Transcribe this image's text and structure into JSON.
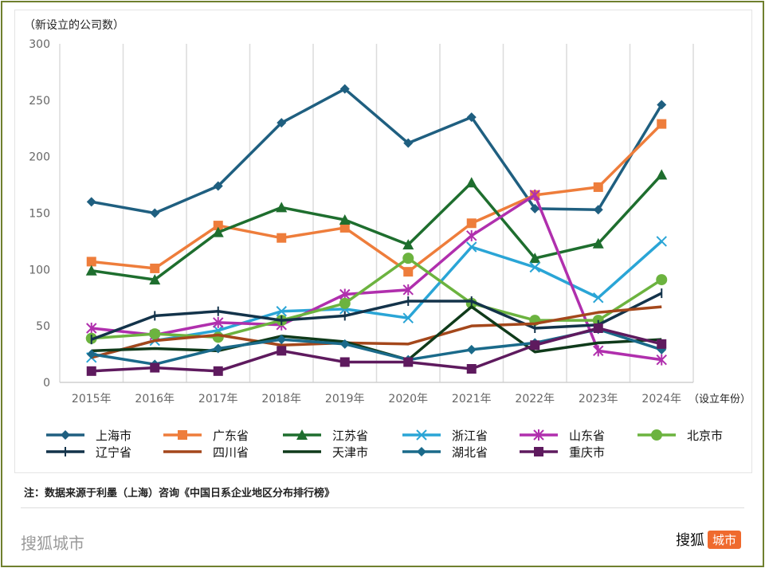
{
  "chart_data": {
    "type": "line",
    "ylabel": "（新设立的公司数）",
    "xlabel": "（设立年份）",
    "ylim": [
      0,
      300
    ],
    "yticks": [
      0,
      50,
      100,
      150,
      200,
      250,
      300
    ],
    "grid": "vertical",
    "legend": "bottom",
    "categories": [
      "2015年",
      "2016年",
      "2017年",
      "2018年",
      "2019年",
      "2020年",
      "2021年",
      "2022年",
      "2023年",
      "2024年"
    ],
    "series": [
      {
        "name": "上海市",
        "color": "#1f5f80",
        "marker": "diamond",
        "values": [
          160,
          150,
          174,
          230,
          260,
          212,
          235,
          154,
          153,
          246
        ]
      },
      {
        "name": "广东省",
        "color": "#ee7d3b",
        "marker": "square",
        "values": [
          107,
          101,
          139,
          128,
          137,
          98,
          141,
          166,
          173,
          229
        ]
      },
      {
        "name": "江苏省",
        "color": "#1e6e2e",
        "marker": "triangle",
        "values": [
          99,
          91,
          133,
          155,
          144,
          122,
          177,
          110,
          123,
          184
        ]
      },
      {
        "name": "浙江省",
        "color": "#2aa5d6",
        "marker": "x",
        "values": [
          22,
          37,
          46,
          63,
          65,
          57,
          120,
          102,
          75,
          125
        ]
      },
      {
        "name": "山东省",
        "color": "#b02fad",
        "marker": "star",
        "values": [
          48,
          42,
          53,
          51,
          78,
          82,
          130,
          166,
          28,
          20
        ]
      },
      {
        "name": "北京市",
        "color": "#6cb33f",
        "marker": "circle",
        "values": [
          39,
          43,
          40,
          55,
          70,
          110,
          70,
          55,
          55,
          91
        ]
      },
      {
        "name": "辽宁省",
        "color": "#13334a",
        "marker": "plus",
        "values": [
          38,
          59,
          63,
          55,
          59,
          72,
          72,
          48,
          51,
          79
        ]
      },
      {
        "name": "四川省",
        "color": "#a4471b",
        "marker": "none",
        "values": [
          22,
          37,
          42,
          33,
          35,
          34,
          50,
          52,
          62,
          67
        ]
      },
      {
        "name": "天津市",
        "color": "#0f3a1a",
        "marker": "none",
        "values": [
          28,
          30,
          28,
          41,
          36,
          20,
          67,
          27,
          35,
          38
        ]
      },
      {
        "name": "湖北省",
        "color": "#1a6a8a",
        "marker": "diamond",
        "values": [
          25,
          16,
          30,
          38,
          34,
          20,
          29,
          35,
          47,
          29
        ]
      },
      {
        "name": "重庆市",
        "color": "#5e1a5e",
        "marker": "square",
        "values": [
          10,
          13,
          10,
          28,
          18,
          18,
          12,
          33,
          48,
          34
        ]
      }
    ]
  },
  "note": "注：数据来源于利墨（上海）咨询《中国日系企业地区分布排行榜》",
  "footer": {
    "left": "搜狐城市",
    "right_a": "搜狐",
    "right_b": "城市"
  }
}
